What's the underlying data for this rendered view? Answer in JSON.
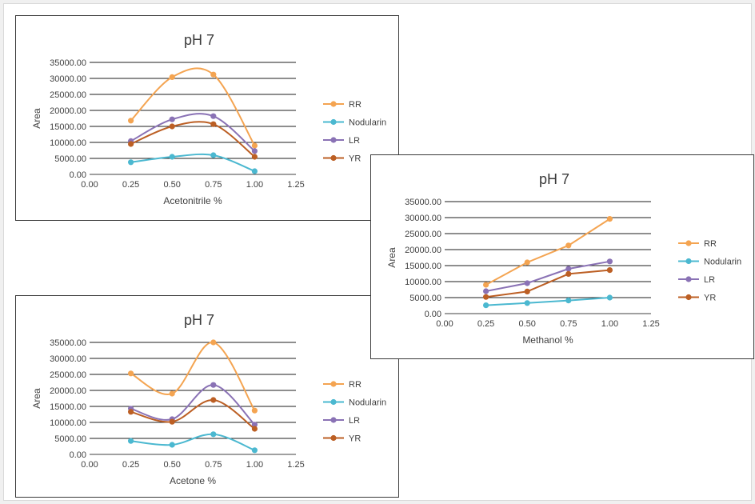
{
  "chart_data": [
    {
      "type": "line",
      "smooth": true,
      "title": "pH 7",
      "xlabel": "Acetonitrile %",
      "ylabel": "Area",
      "xlim": [
        0,
        1.25
      ],
      "ylim": [
        0,
        35000
      ],
      "xticks": [
        "0.00",
        "0.25",
        "0.50",
        "0.75",
        "1.00",
        "1.25"
      ],
      "yticks": [
        "0.00",
        "5000.00",
        "10000.00",
        "15000.00",
        "20000.00",
        "25000.00",
        "30000.00",
        "35000.00"
      ],
      "grid": "horizontal",
      "legend_position": "right",
      "x": [
        0.25,
        0.5,
        0.75,
        1.0
      ],
      "series": [
        {
          "name": "RR",
          "color": "#F4A451",
          "values": [
            16800,
            30400,
            31200,
            9000
          ]
        },
        {
          "name": "Nodularin",
          "color": "#4BB8D0",
          "values": [
            3800,
            5500,
            6000,
            1000
          ]
        },
        {
          "name": "LR",
          "color": "#8A72B5",
          "values": [
            10400,
            17200,
            18200,
            7300
          ]
        },
        {
          "name": "YR",
          "color": "#BC5F24",
          "values": [
            9500,
            15000,
            15700,
            5500
          ]
        }
      ]
    },
    {
      "type": "line",
      "smooth": false,
      "title": "pH 7",
      "xlabel": "Methanol %",
      "ylabel": "Area",
      "xlim": [
        0,
        1.25
      ],
      "ylim": [
        0,
        35000
      ],
      "xticks": [
        "0.00",
        "0.25",
        "0.50",
        "0.75",
        "1.00",
        "1.25"
      ],
      "yticks": [
        "0.00",
        "5000.00",
        "10000.00",
        "15000.00",
        "20000.00",
        "25000.00",
        "30000.00",
        "35000.00"
      ],
      "grid": "horizontal",
      "legend_position": "right",
      "x": [
        0.25,
        0.5,
        0.75,
        1.0
      ],
      "series": [
        {
          "name": "RR",
          "color": "#F4A451",
          "values": [
            9000,
            16000,
            21300,
            29600
          ]
        },
        {
          "name": "Nodularin",
          "color": "#4BB8D0",
          "values": [
            2600,
            3300,
            4100,
            5000
          ]
        },
        {
          "name": "LR",
          "color": "#8A72B5",
          "values": [
            7000,
            9500,
            14000,
            16300
          ]
        },
        {
          "name": "YR",
          "color": "#BC5F24",
          "values": [
            5200,
            6900,
            12400,
            13600
          ]
        }
      ]
    },
    {
      "type": "line",
      "smooth": true,
      "title": "pH 7",
      "xlabel": "Acetone %",
      "ylabel": "Area",
      "xlim": [
        0,
        1.25
      ],
      "ylim": [
        0,
        35000
      ],
      "xticks": [
        "0.00",
        "0.25",
        "0.50",
        "0.75",
        "1.00",
        "1.25"
      ],
      "yticks": [
        "0.00",
        "5000.00",
        "10000.00",
        "15000.00",
        "20000.00",
        "25000.00",
        "30000.00",
        "35000.00"
      ],
      "grid": "horizontal",
      "legend_position": "right",
      "x": [
        0.25,
        0.5,
        0.75,
        1.0
      ],
      "series": [
        {
          "name": "RR",
          "color": "#F4A451",
          "values": [
            25300,
            19000,
            35000,
            13700
          ]
        },
        {
          "name": "Nodularin",
          "color": "#4BB8D0",
          "values": [
            4200,
            3000,
            6300,
            1300
          ]
        },
        {
          "name": "LR",
          "color": "#8A72B5",
          "values": [
            14300,
            11000,
            21700,
            9300
          ]
        },
        {
          "name": "YR",
          "color": "#BC5F24",
          "values": [
            13300,
            10200,
            17000,
            8000
          ]
        }
      ]
    }
  ]
}
